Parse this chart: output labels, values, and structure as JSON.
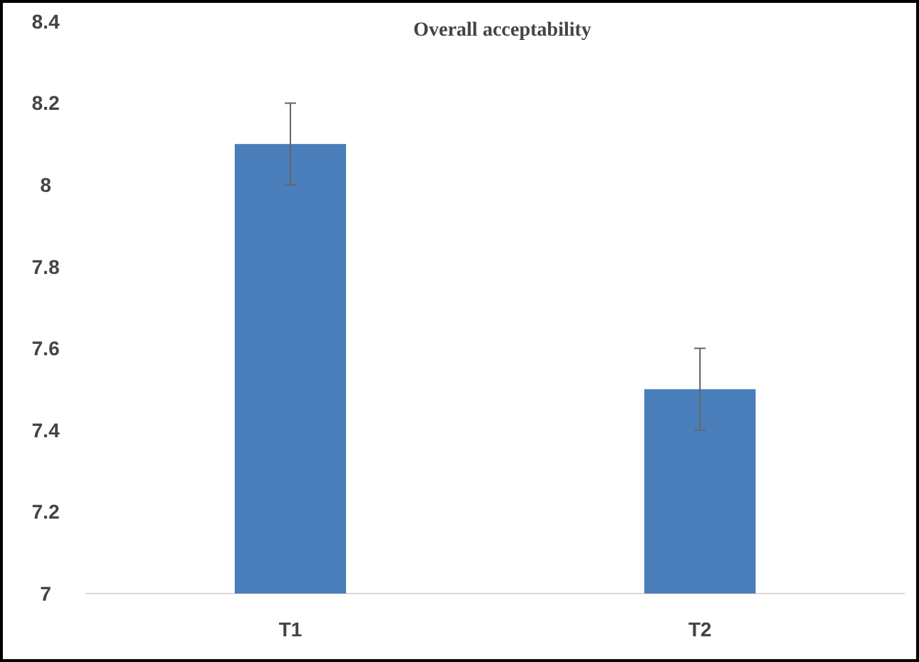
{
  "chart_data": {
    "type": "bar",
    "title": "Overall acceptability",
    "categories": [
      "T1",
      "T2"
    ],
    "values": [
      8.1,
      7.5
    ],
    "errors": [
      0.1,
      0.1
    ],
    "color": "#4a7ebb",
    "ylim": [
      7,
      8.4
    ],
    "yticks": [
      7,
      7.2,
      7.4,
      7.6,
      7.8,
      8,
      8.2,
      8.4
    ],
    "grid": false
  }
}
